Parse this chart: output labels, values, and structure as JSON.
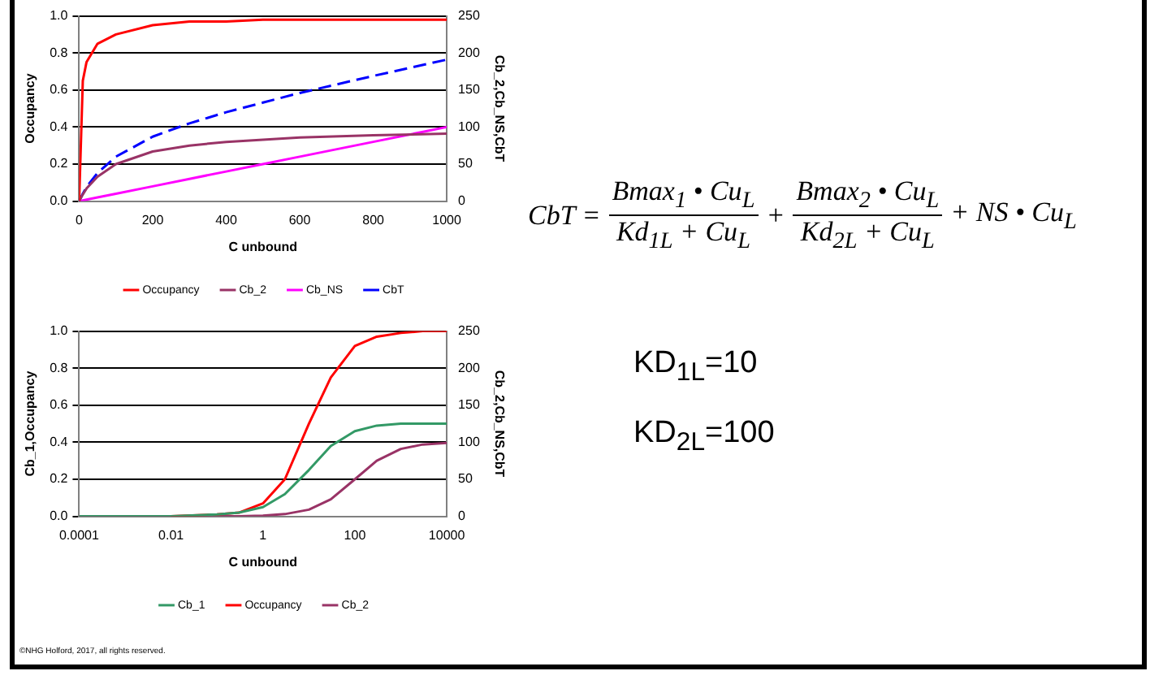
{
  "chart_data": [
    {
      "type": "line",
      "xlabel": "C unbound",
      "ylabel": "Occupancy",
      "y2label": "Cb_2,Cb_NS,CbT",
      "x": [
        0,
        10,
        20,
        50,
        100,
        200,
        300,
        400,
        500,
        600,
        800,
        1000
      ],
      "series": [
        {
          "name": "Occupancy",
          "color": "#ff0000",
          "values": [
            0,
            0.65,
            0.75,
            0.85,
            0.9,
            0.95,
            0.97,
            0.97,
            0.98,
            0.98,
            0.98,
            0.98
          ]
        },
        {
          "name": "Cb_2",
          "color": "#993366",
          "axis": "y2",
          "values": [
            0,
            9,
            17,
            33,
            50,
            67,
            75,
            80,
            83,
            86,
            89,
            91
          ]
        },
        {
          "name": "Cb_NS",
          "color": "#ff00ff",
          "axis": "y2",
          "values": [
            0,
            1,
            2,
            5,
            10,
            20,
            30,
            40,
            50,
            60,
            80,
            100
          ]
        },
        {
          "name": "CbT",
          "color": "#0000ff",
          "axis": "y2",
          "line_style": "dashed",
          "values": [
            0,
            10,
            19,
            38,
            60,
            87,
            105,
            120,
            133,
            146,
            169,
            191
          ]
        }
      ],
      "xlim": [
        0,
        1000
      ],
      "xticks": [
        0,
        200,
        400,
        600,
        800,
        1000
      ],
      "ylim": [
        0,
        1
      ],
      "yticks": [
        {
          "value": 0,
          "label": "0.0"
        },
        {
          "value": 0.2,
          "label": "0.2"
        },
        {
          "value": 0.4,
          "label": "0.4"
        },
        {
          "value": 0.6,
          "label": "0.6"
        },
        {
          "value": 0.8,
          "label": "0.8"
        },
        {
          "value": 1,
          "label": "1.0"
        }
      ],
      "y2lim": [
        0,
        250
      ],
      "y2ticks": [
        0,
        50,
        100,
        150,
        200,
        250
      ],
      "grid": "y",
      "legend": "bottom",
      "marker": "none",
      "line_style": "solid"
    },
    {
      "type": "line",
      "xlabel": "C unbound",
      "ylabel": "Cb_1,Occupancy",
      "y2label": "Cb_2,Cb_NS,CbT",
      "log": "x",
      "x": [
        0.0001,
        0.001,
        0.01,
        0.1,
        0.3,
        1,
        3,
        10,
        30,
        100,
        300,
        1000,
        3000,
        10000
      ],
      "series": [
        {
          "name": "Cb_1",
          "color": "#339966",
          "values": [
            0,
            0,
            0,
            0.01,
            0.02,
            0.05,
            0.12,
            0.25,
            0.38,
            0.46,
            0.49,
            0.5,
            0.5,
            0.5
          ]
        },
        {
          "name": "Occupancy",
          "color": "#ff0000",
          "values": [
            null,
            null,
            0,
            0.01,
            0.02,
            0.07,
            0.2,
            0.5,
            0.75,
            0.92,
            0.97,
            0.99,
            1,
            1
          ]
        },
        {
          "name": "Cb_2",
          "color": "#993366",
          "axis": "y2",
          "values": [
            0,
            0,
            0,
            0,
            0,
            1,
            3,
            9,
            23,
            50,
            75,
            91,
            97,
            99
          ]
        }
      ],
      "xlim": [
        0.0001,
        10000
      ],
      "xticks": [
        {
          "value": 0.0001,
          "label": "0.0001"
        },
        {
          "value": 0.01,
          "label": "0.01"
        },
        1,
        100,
        10000
      ],
      "ylim": [
        0,
        1
      ],
      "yticks": [
        {
          "value": 0,
          "label": "0.0"
        },
        {
          "value": 0.2,
          "label": "0.2"
        },
        {
          "value": 0.4,
          "label": "0.4"
        },
        {
          "value": 0.6,
          "label": "0.6"
        },
        {
          "value": 0.8,
          "label": "0.8"
        },
        {
          "value": 1,
          "label": "1.0"
        }
      ],
      "y2lim": [
        0,
        250
      ],
      "y2ticks": [
        0,
        50,
        100,
        150,
        200,
        250
      ],
      "grid": "y",
      "legend": "bottom",
      "marker": "none",
      "line_style": "solid"
    },
    {
      "type": "other",
      "annotations": [
        "CbT =",
        "Bmax$_{1}$ • Cu$_{L}$",
        "Kd$_{1L}$ + Cu$_{L}$",
        "+",
        "Bmax$_{2}$ • Cu$_{L}$",
        "Kd$_{2L}$ + Cu$_{L}$",
        "+ NS • Cu$_{L}$",
        "KD$_{1L}$=10",
        "KD$_{2L}$=100",
        "©NHG Holford, 2017, all rights reserved."
      ]
    }
  ]
}
